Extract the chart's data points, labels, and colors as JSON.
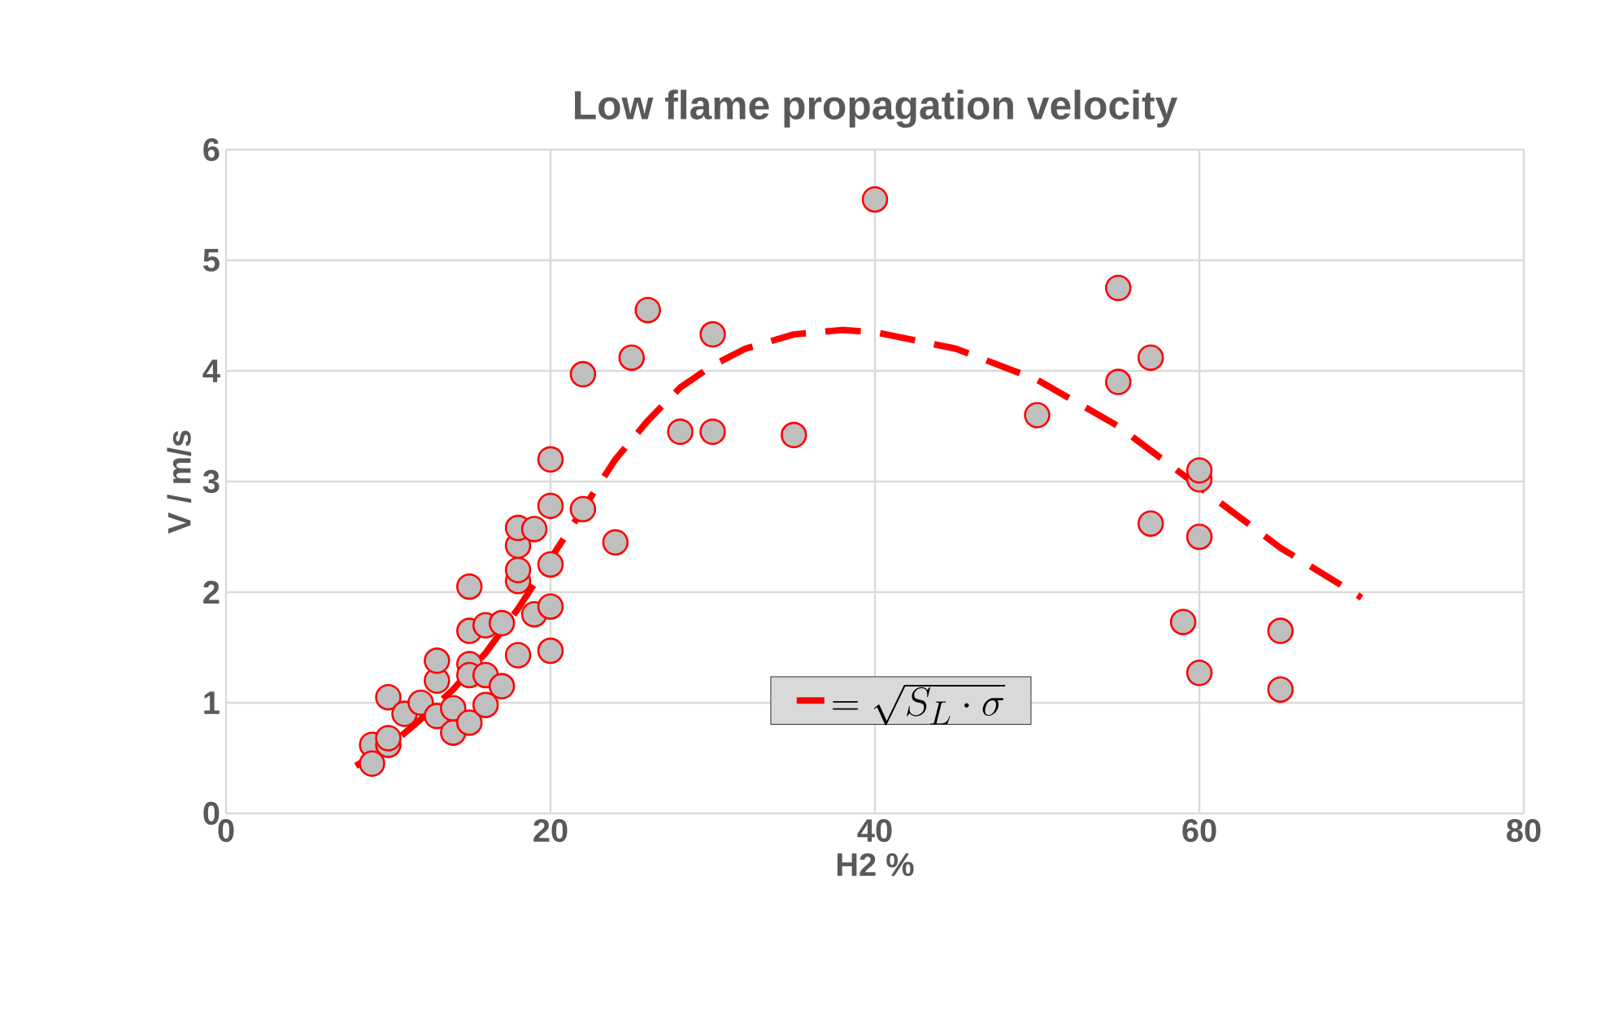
{
  "chart_data": {
    "type": "scatter",
    "title": "Low flame propagation velocity",
    "xlabel": "H2 %",
    "ylabel": "V /  m/s",
    "xlim": [
      0,
      80
    ],
    "xticks": [
      0,
      20,
      40,
      60,
      80
    ],
    "ylim": [
      0,
      6
    ],
    "yticks": [
      0,
      1,
      2,
      3,
      4,
      5,
      6
    ],
    "grid": true,
    "legend": "bottom",
    "series": [
      {
        "color": "#ff0000",
        "marker": "circle",
        "x": [
          9,
          9,
          10,
          10,
          10,
          11,
          12,
          13,
          13,
          13,
          14,
          14,
          15,
          15,
          15,
          15,
          15,
          16,
          16,
          16,
          17,
          17,
          18,
          18,
          18,
          18,
          18,
          19,
          19,
          20,
          20,
          20,
          20,
          20,
          22,
          22,
          24,
          25,
          26,
          28,
          30,
          30,
          35,
          40,
          50,
          55,
          55,
          57,
          57,
          59,
          60,
          60,
          60,
          60,
          65,
          65
        ],
        "values": [
          0.62,
          0.45,
          0.62,
          0.68,
          1.05,
          0.9,
          1.0,
          0.88,
          1.2,
          1.38,
          0.95,
          0.73,
          0.82,
          1.35,
          1.25,
          1.65,
          2.05,
          0.98,
          1.25,
          1.7,
          1.15,
          1.72,
          1.43,
          2.1,
          2.2,
          2.42,
          2.58,
          1.8,
          2.57,
          1.47,
          1.87,
          2.25,
          2.78,
          3.2,
          2.75,
          3.97,
          2.45,
          4.12,
          4.55,
          3.45,
          3.45,
          4.33,
          3.42,
          5.55,
          3.6,
          4.75,
          3.9,
          4.12,
          2.62,
          1.73,
          3.02,
          3.1,
          2.5,
          1.27,
          1.65,
          1.12
        ]
      },
      {
        "type": "line",
        "name": "= \\sqrt{S_L \\cdot \\sigma}",
        "color": "#ff0000",
        "line_style": "dashed",
        "marker": "none",
        "x": [
          8,
          10,
          12,
          14,
          16,
          18,
          20,
          22,
          24,
          26,
          28,
          30,
          32,
          35,
          38,
          40,
          45,
          50,
          55,
          60,
          65,
          70
        ],
        "values": [
          0.43,
          0.6,
          0.85,
          1.12,
          1.45,
          1.85,
          2.3,
          2.75,
          3.2,
          3.55,
          3.85,
          4.05,
          4.2,
          4.33,
          4.37,
          4.35,
          4.2,
          3.92,
          3.5,
          2.95,
          2.4,
          1.95
        ]
      }
    ]
  }
}
